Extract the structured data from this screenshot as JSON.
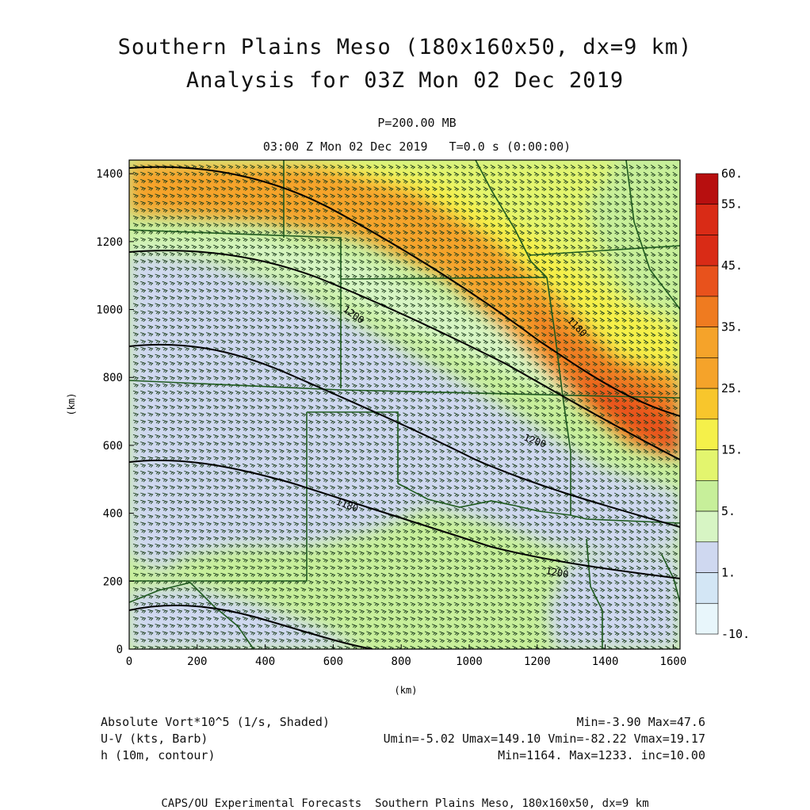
{
  "title": "Southern Plains Meso (180x160x50, dx=9 km)",
  "subtitle": "Analysis for 03Z Mon 02 Dec 2019",
  "level": "P=200.00 MB",
  "time_line": "03:00 Z Mon 02 Dec 2019   T=0.0 s (0:00:00)",
  "footer": {
    "field1_label": "Absolute Vort*10^5 (1/s, Shaded)",
    "field1_stats": "Min=-3.90 Max=47.6",
    "field2_label": "U-V (kts, Barb)",
    "field2_stats": "Umin=-5.02 Umax=149.10 Vmin=-82.22 Vmax=19.17",
    "field3_label": "h (10m, contour)",
    "field3_stats": "Min=1164. Max=1233. inc=10.00",
    "credit": "CAPS/OU Experimental Forecasts  Southern Plains Meso, 180x160x50, dx=9 km"
  },
  "colors": {
    "very_low": "#e8f6fb",
    "low": "#d3e6f5",
    "lavender": "#cfd8f0",
    "pale_green": "#d7f5c4",
    "light_green": "#c7ef9a",
    "lime": "#e3f56e",
    "yellow": "#f5f04a",
    "gold": "#f8c62c",
    "orange": "#f5a32a",
    "dark_orange": "#ef7b20",
    "red_orange": "#e8521c",
    "red": "#d92b16",
    "dark_red": "#b70f0f",
    "border": "#1f5a1f",
    "barb": "#1c3d1c",
    "contour": "#000000"
  },
  "chart_data": {
    "type": "heatmap",
    "xlabel": "(km)",
    "ylabel": "(km)",
    "xlim": [
      0,
      1620
    ],
    "ylim": [
      0,
      1440
    ],
    "xticks": [
      "0",
      "200",
      "400",
      "600",
      "800",
      "1000",
      "1200",
      "1400",
      "1600"
    ],
    "yticks": [
      "0",
      "200",
      "400",
      "600",
      "800",
      "1000",
      "1200",
      "1400"
    ],
    "colorbar_labels": [
      "60.",
      "55.",
      "45.",
      "35.",
      "25.",
      "15.",
      "5.",
      "1.",
      "-10."
    ],
    "contour_labels": [
      "1200",
      "1180",
      "1200",
      "1180",
      "1200"
    ]
  }
}
